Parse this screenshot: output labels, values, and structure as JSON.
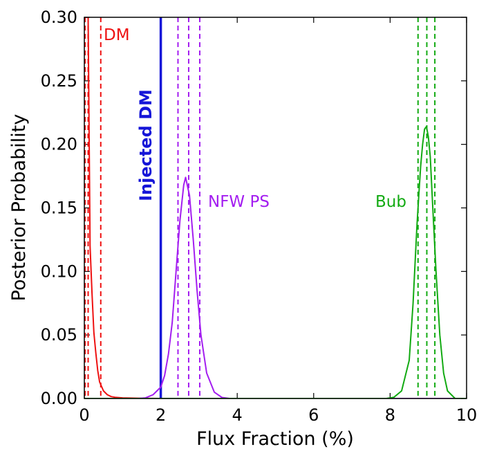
{
  "chart_data": {
    "type": "line",
    "xlabel": "Flux Fraction (%)",
    "ylabel": "Posterior Probability",
    "xlim": [
      0,
      10
    ],
    "ylim": [
      0,
      0.3
    ],
    "xticks": [
      0,
      2,
      4,
      6,
      8,
      10
    ],
    "yticks": [
      0.0,
      0.05,
      0.1,
      0.15,
      0.2,
      0.25,
      0.3
    ],
    "xtick_labels": [
      "0",
      "2",
      "4",
      "6",
      "8",
      "10"
    ],
    "ytick_labels": [
      "0.00",
      "0.05",
      "0.10",
      "0.15",
      "0.20",
      "0.25",
      "0.30"
    ],
    "grid": false,
    "series": [
      {
        "name": "DM",
        "color": "#ee1111",
        "label": "DM",
        "x": [
          0.0,
          0.05,
          0.1,
          0.15,
          0.2,
          0.25,
          0.3,
          0.35,
          0.4,
          0.5,
          0.6,
          0.7,
          0.8,
          1.0,
          1.2,
          1.5,
          2.0,
          2.5,
          10.0
        ],
        "y": [
          0.3,
          0.3,
          0.3,
          0.12,
          0.083,
          0.052,
          0.036,
          0.022,
          0.013,
          0.006,
          0.003,
          0.0015,
          0.001,
          0.0005,
          0.0003,
          0.0001,
          0.0,
          0.0,
          0.0
        ],
        "quantiles": [
          0.02,
          0.1,
          0.43
        ]
      },
      {
        "name": "NFW PS",
        "color": "#a31df0",
        "label": "NFW PS",
        "x": [
          0.0,
          1.4,
          1.6,
          1.8,
          2.0,
          2.1,
          2.2,
          2.3,
          2.4,
          2.5,
          2.6,
          2.65,
          2.75,
          2.85,
          2.95,
          3.05,
          3.2,
          3.4,
          3.6,
          3.8,
          10.0
        ],
        "y": [
          0.0,
          0.0,
          0.0005,
          0.003,
          0.009,
          0.018,
          0.035,
          0.06,
          0.1,
          0.14,
          0.168,
          0.174,
          0.16,
          0.125,
          0.085,
          0.05,
          0.02,
          0.005,
          0.0008,
          0.0,
          0.0
        ],
        "quantiles": [
          2.45,
          2.73,
          3.02
        ]
      },
      {
        "name": "Bub",
        "color": "#12aa12",
        "label": "Bub",
        "x": [
          0.0,
          7.9,
          8.1,
          8.3,
          8.5,
          8.6,
          8.7,
          8.75,
          8.8,
          8.85,
          8.9,
          8.95,
          9.0,
          9.05,
          9.1,
          9.2,
          9.3,
          9.4,
          9.5,
          9.7,
          10.0
        ],
        "y": [
          0.0,
          0.0,
          0.001,
          0.006,
          0.03,
          0.075,
          0.135,
          0.16,
          0.183,
          0.2,
          0.212,
          0.214,
          0.206,
          0.19,
          0.16,
          0.1,
          0.05,
          0.02,
          0.006,
          0.0,
          0.0
        ],
        "quantiles": [
          8.73,
          8.96,
          9.17
        ]
      }
    ],
    "vlines": [
      {
        "name": "Injected DM",
        "x": 2.0,
        "color": "#1515d8",
        "label": "Injected DM"
      }
    ]
  }
}
